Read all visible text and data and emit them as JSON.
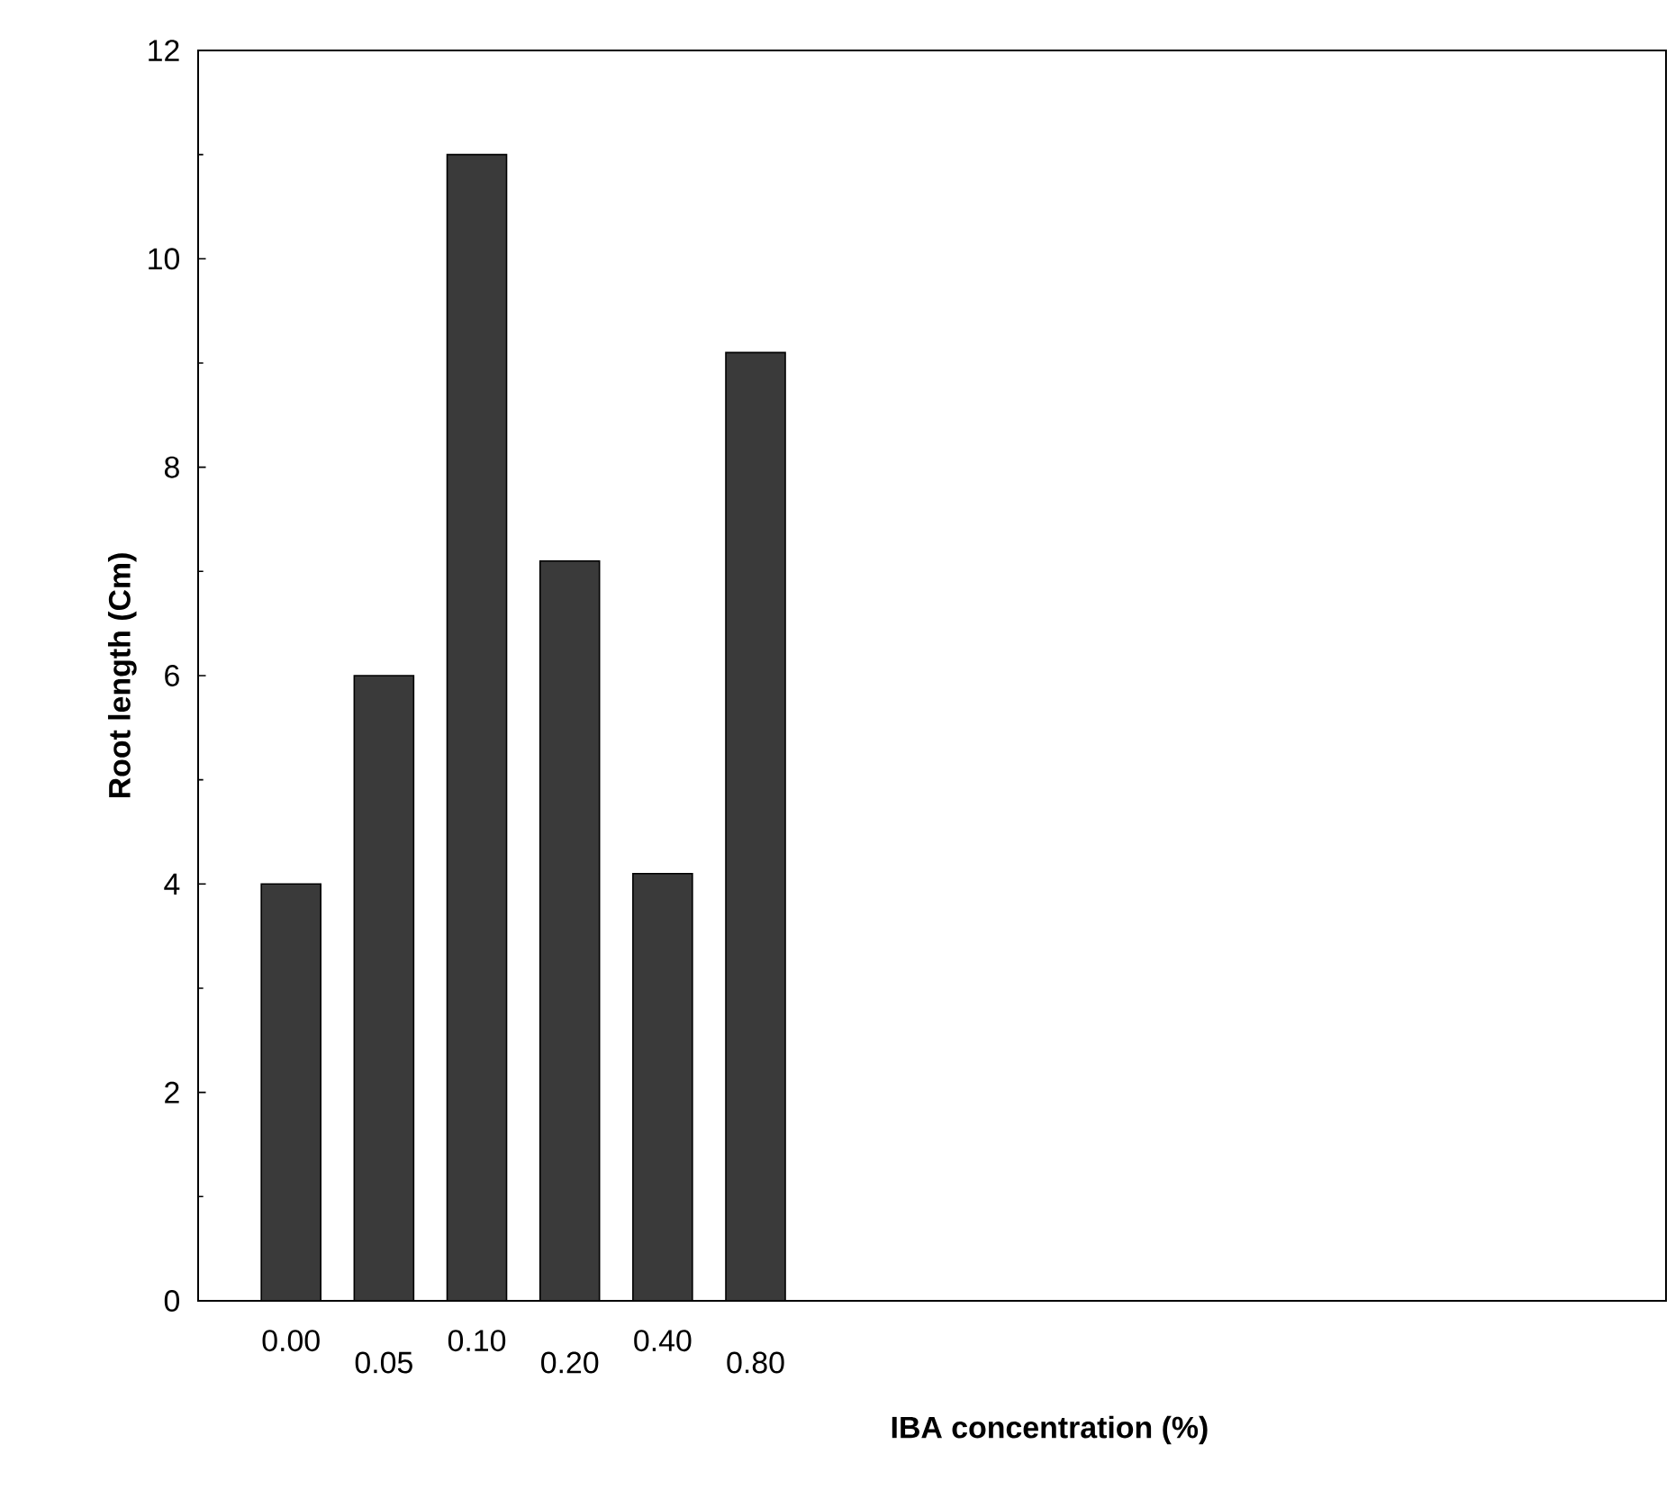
{
  "chart_data": {
    "type": "bar",
    "xlabel": "IBA concentration (%)",
    "ylabel": "Root length (Cm)",
    "categories": [
      "0.00",
      "0.05",
      "0.10",
      "0.20",
      "0.40",
      "0.80"
    ],
    "values": [
      4.0,
      6.0,
      11.0,
      7.1,
      4.1,
      9.1
    ],
    "color": "#3a3a3a",
    "ylim": [
      0,
      12
    ],
    "yticks": [
      0,
      2,
      4,
      6,
      8,
      10,
      12
    ]
  }
}
